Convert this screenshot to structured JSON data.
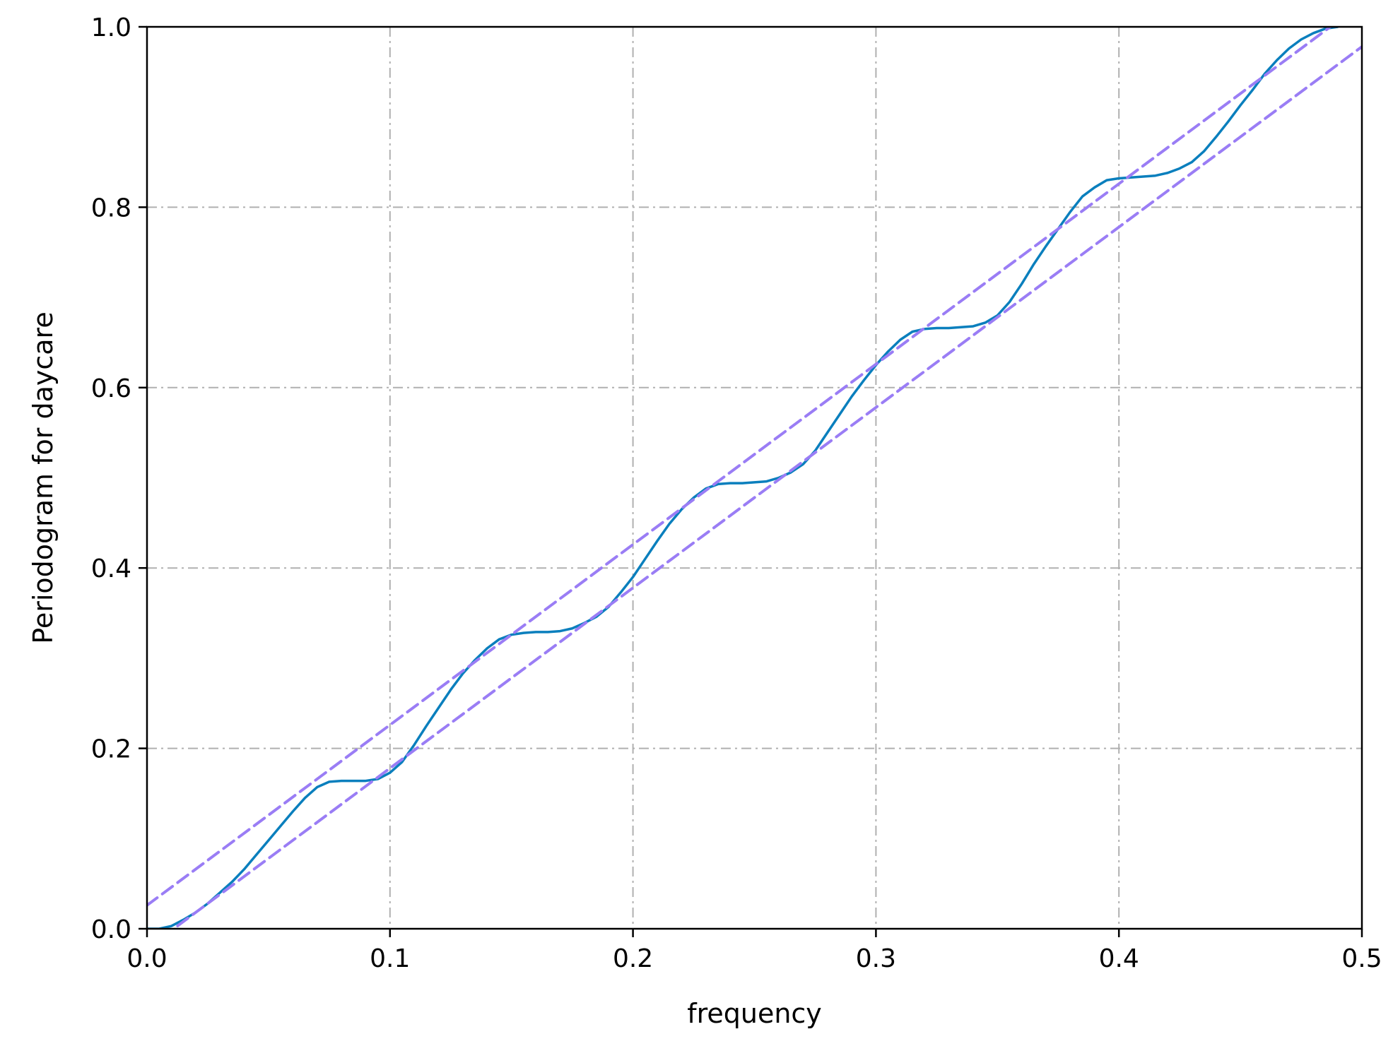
{
  "chart_data": {
    "type": "line",
    "title": "",
    "xlabel": "frequency",
    "ylabel": "Periodogram for daycare",
    "xlim": [
      0.0,
      0.5
    ],
    "ylim": [
      0.0,
      1.0
    ],
    "x_ticks": [
      "0.0",
      "0.1",
      "0.2",
      "0.3",
      "0.4",
      "0.5"
    ],
    "y_ticks": [
      "0.0",
      "0.2",
      "0.4",
      "0.6",
      "0.8",
      "1.0"
    ],
    "x_tick_values": [
      0.0,
      0.1,
      0.2,
      0.3,
      0.4,
      0.5
    ],
    "y_tick_values": [
      0.0,
      0.2,
      0.4,
      0.6,
      0.8,
      1.0
    ],
    "grid": true,
    "legend": "none",
    "colors": {
      "periodogram": "#0a7fbd",
      "bounds": "#9a7df5",
      "grid": "#b0b0b0",
      "axes": "#000000"
    },
    "series": [
      {
        "style": "solid",
        "x": [
          0.0,
          0.005,
          0.01,
          0.015,
          0.02,
          0.025,
          0.03,
          0.035,
          0.04,
          0.045,
          0.05,
          0.055,
          0.06,
          0.065,
          0.07,
          0.075,
          0.08,
          0.085,
          0.09,
          0.095,
          0.1,
          0.105,
          0.11,
          0.115,
          0.12,
          0.125,
          0.13,
          0.135,
          0.14,
          0.145,
          0.15,
          0.155,
          0.16,
          0.165,
          0.17,
          0.175,
          0.18,
          0.185,
          0.19,
          0.195,
          0.2,
          0.205,
          0.21,
          0.215,
          0.22,
          0.225,
          0.23,
          0.235,
          0.24,
          0.245,
          0.25,
          0.255,
          0.26,
          0.265,
          0.27,
          0.275,
          0.28,
          0.285,
          0.29,
          0.295,
          0.3,
          0.305,
          0.31,
          0.315,
          0.32,
          0.325,
          0.33,
          0.335,
          0.34,
          0.345,
          0.35,
          0.355,
          0.36,
          0.365,
          0.37,
          0.375,
          0.38,
          0.385,
          0.39,
          0.395,
          0.4,
          0.405,
          0.41,
          0.415,
          0.42,
          0.425,
          0.43,
          0.435,
          0.44,
          0.445,
          0.45,
          0.455,
          0.46,
          0.465,
          0.47,
          0.475,
          0.48,
          0.485,
          0.49
        ],
        "y": [
          0.0,
          0.0,
          0.003,
          0.01,
          0.018,
          0.028,
          0.04,
          0.052,
          0.066,
          0.082,
          0.098,
          0.114,
          0.13,
          0.145,
          0.157,
          0.163,
          0.164,
          0.164,
          0.164,
          0.166,
          0.173,
          0.185,
          0.204,
          0.225,
          0.245,
          0.265,
          0.283,
          0.298,
          0.311,
          0.321,
          0.326,
          0.328,
          0.329,
          0.329,
          0.33,
          0.333,
          0.339,
          0.346,
          0.357,
          0.373,
          0.39,
          0.41,
          0.43,
          0.449,
          0.465,
          0.478,
          0.488,
          0.493,
          0.494,
          0.494,
          0.495,
          0.496,
          0.5,
          0.506,
          0.515,
          0.53,
          0.55,
          0.57,
          0.59,
          0.608,
          0.625,
          0.64,
          0.653,
          0.662,
          0.665,
          0.666,
          0.666,
          0.667,
          0.668,
          0.672,
          0.68,
          0.695,
          0.715,
          0.737,
          0.757,
          0.776,
          0.795,
          0.812,
          0.822,
          0.83,
          0.832,
          0.833,
          0.834,
          0.835,
          0.838,
          0.843,
          0.85,
          0.862,
          0.878,
          0.895,
          0.913,
          0.93,
          0.948,
          0.963,
          0.976,
          0.986,
          0.993,
          0.998,
          1.0
        ]
      },
      {
        "style": "dashed",
        "x": [
          0.0,
          0.5
        ],
        "y": [
          0.026,
          1.026
        ]
      },
      {
        "style": "dashed",
        "x": [
          0.0,
          0.5
        ],
        "y": [
          -0.022,
          0.978
        ]
      }
    ]
  }
}
